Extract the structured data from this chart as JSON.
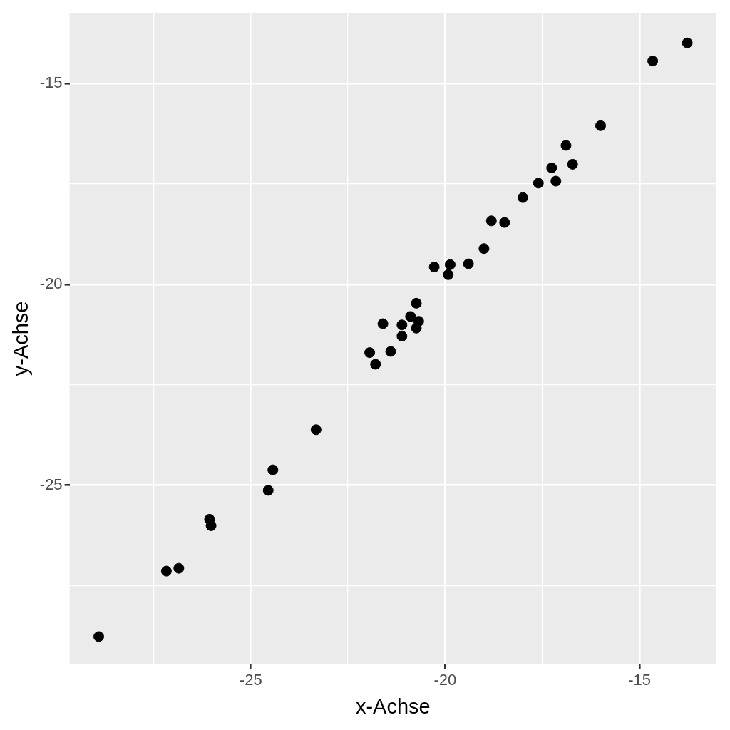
{
  "chart_data": {
    "type": "scatter",
    "xlabel": "x-Achse",
    "ylabel": "y-Achse",
    "xlim": [
      -29.66,
      -13.02
    ],
    "ylim": [
      -29.46,
      -13.24
    ],
    "xticks": [
      {
        "value": -27.5,
        "label": null
      },
      -25,
      {
        "value": -22.5,
        "label": null
      },
      -20,
      {
        "value": -17.5,
        "label": null
      },
      -15
    ],
    "yticks": [
      {
        "value": -27.5,
        "label": null
      },
      -25,
      {
        "value": -22.5,
        "label": null
      },
      -20,
      {
        "value": -17.5,
        "label": null
      },
      -15
    ],
    "grid": true,
    "marker": "circle",
    "series": [
      {
        "color": "#000000",
        "x": [
          -28.91,
          -27.17,
          -26.85,
          -26.06,
          -26.02,
          -24.55,
          -24.43,
          -23.32,
          -21.94,
          -21.79,
          -21.6,
          -21.4,
          -21.11,
          -21.11,
          -20.89,
          -20.74,
          -20.74,
          -20.68,
          -20.28,
          -19.92,
          -19.87,
          -19.4,
          -19.0,
          -18.81,
          -18.47,
          -18.0,
          -17.6,
          -17.26,
          -17.15,
          -16.89,
          -16.72,
          -16.0,
          -14.66,
          -13.77
        ],
        "values": [
          -28.77,
          -27.14,
          -27.07,
          -25.85,
          -26.01,
          -25.13,
          -24.62,
          -23.62,
          -21.7,
          -21.99,
          -20.98,
          -21.67,
          -21.01,
          -21.29,
          -20.8,
          -20.47,
          -21.09,
          -20.92,
          -19.57,
          -19.76,
          -19.51,
          -19.49,
          -19.11,
          -18.42,
          -18.46,
          -17.84,
          -17.48,
          -17.1,
          -17.43,
          -16.54,
          -17.01,
          -16.05,
          -14.44,
          -13.99
        ]
      }
    ]
  }
}
